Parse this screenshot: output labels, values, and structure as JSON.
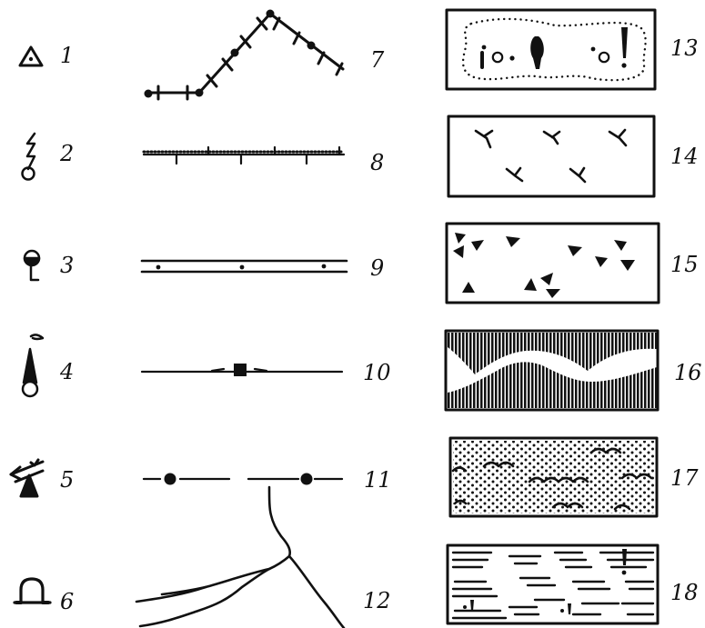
{
  "legend": {
    "items": [
      {
        "number": "1",
        "symbol": "triangulation-point-icon"
      },
      {
        "number": "2",
        "symbol": "radio-mast-icon"
      },
      {
        "number": "3",
        "symbol": "well-icon"
      },
      {
        "number": "4",
        "symbol": "factory-chimney-icon"
      },
      {
        "number": "5",
        "symbol": "windmill-icon"
      },
      {
        "number": "6",
        "symbol": "cave-entrance-icon"
      },
      {
        "number": "7",
        "symbol": "power-line-icon"
      },
      {
        "number": "8",
        "symbol": "railway-icon"
      },
      {
        "number": "9",
        "symbol": "paved-highway-icon"
      },
      {
        "number": "10",
        "symbol": "bridge-road-icon"
      },
      {
        "number": "11",
        "symbol": "cart-track-icon"
      },
      {
        "number": "12",
        "symbol": "river-icon"
      },
      {
        "number": "13",
        "symbol": "garden-area-icon"
      },
      {
        "number": "14",
        "symbol": "grass-meadow-icon"
      },
      {
        "number": "15",
        "symbol": "stony-ground-icon"
      },
      {
        "number": "16",
        "symbol": "reed-marsh-icon"
      },
      {
        "number": "17",
        "symbol": "sand-dunes-icon"
      },
      {
        "number": "18",
        "symbol": "swamp-icon"
      }
    ]
  }
}
